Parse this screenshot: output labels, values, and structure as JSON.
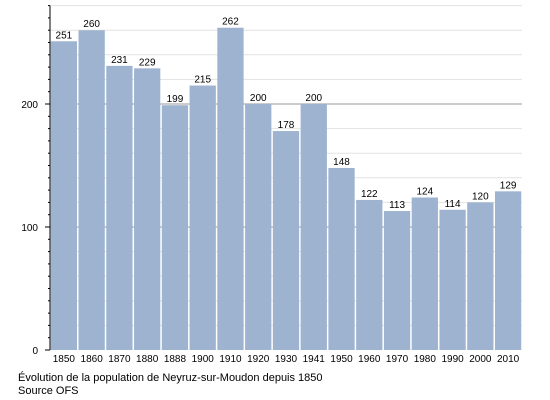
{
  "chart_data": {
    "type": "bar",
    "categories": [
      "1850",
      "1860",
      "1870",
      "1880",
      "1888",
      "1900",
      "1910",
      "1920",
      "1930",
      "1941",
      "1950",
      "1960",
      "1970",
      "1980",
      "1990",
      "2000",
      "2010"
    ],
    "values": [
      251,
      260,
      231,
      229,
      199,
      215,
      262,
      200,
      178,
      200,
      148,
      122,
      113,
      124,
      114,
      120,
      129
    ],
    "ylim": [
      0,
      280
    ],
    "yticks": [
      0,
      100,
      200
    ],
    "grid": true,
    "colors": {
      "bar": "#9db3cf",
      "grid": "#e2e2e2",
      "major_grid": "#9a9a9a",
      "axis": "#000000"
    }
  },
  "caption": {
    "line1": "Évolution de la population de Neyruz-sur-Moudon depuis 1850",
    "line2": "Source OFS"
  }
}
